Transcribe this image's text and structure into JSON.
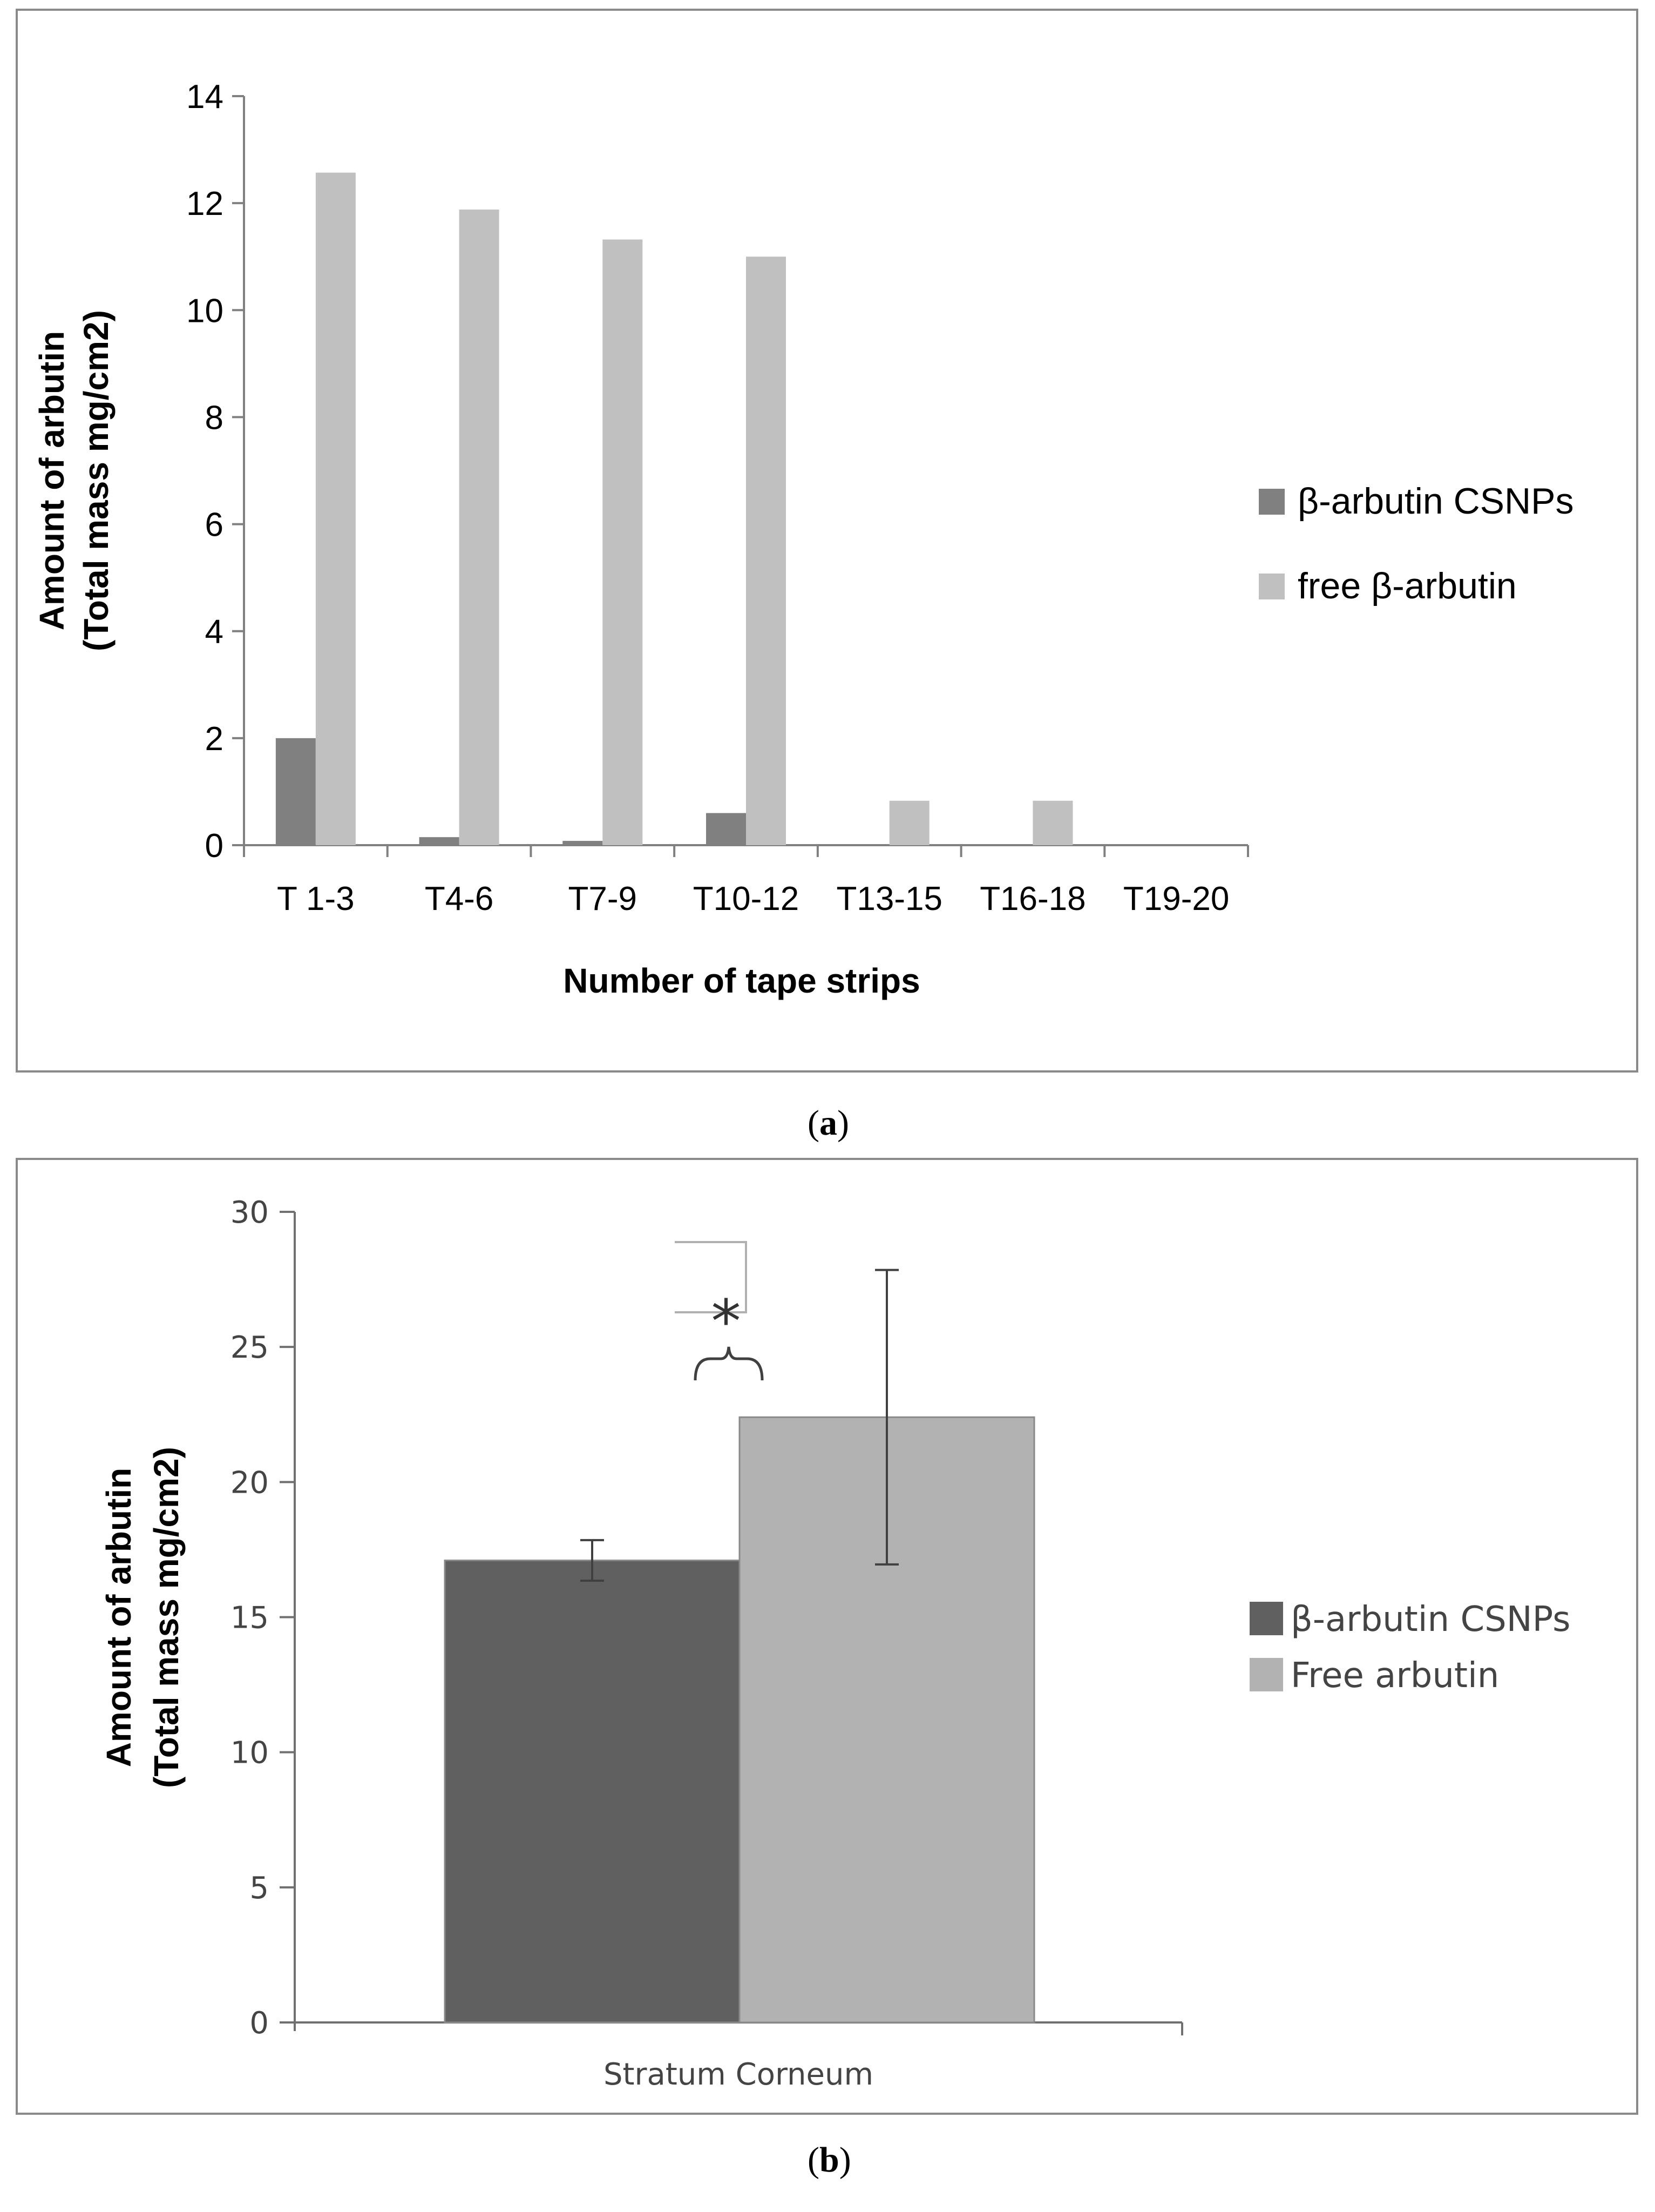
{
  "chart_data": [
    {
      "panel_label": "a",
      "type": "bar",
      "title": "",
      "xlabel": "Number of tape strips",
      "ylabel_lines": [
        "Amount of arbutin",
        "(Total mass mg/cm2)"
      ],
      "ylim": [
        0,
        14
      ],
      "yticks": [
        0,
        2,
        4,
        6,
        8,
        10,
        12,
        14
      ],
      "categories": [
        "T 1-3",
        "T4-6",
        "T7-9",
        "T10-12",
        "T13-15",
        "T16-18",
        "T19-20"
      ],
      "series": [
        {
          "name": "β-arbutin CSNPs",
          "color": "#808080",
          "values": [
            2.0,
            0.15,
            0.08,
            0.6,
            0.0,
            0.02,
            0.0
          ]
        },
        {
          "name": "free β-arbutin",
          "color": "#c0c0c0",
          "values": [
            12.57,
            11.88,
            11.32,
            11.0,
            0.83,
            0.83,
            0.0
          ]
        }
      ],
      "legend_position": "right"
    },
    {
      "panel_label": "b",
      "type": "bar",
      "title": "",
      "xlabel": "",
      "ylabel_lines": [
        "Amount of arbutin",
        "(Total mass mg/cm2)"
      ],
      "ylim": [
        0,
        30
      ],
      "yticks": [
        0,
        5,
        10,
        15,
        20,
        25,
        30
      ],
      "categories": [
        "Stratum Corneum"
      ],
      "series": [
        {
          "name": "β-arbutin CSNPs",
          "color": "#606060",
          "values": [
            17.1
          ],
          "error": [
            0.75
          ]
        },
        {
          "name": "Free arbutin",
          "color": "#b2b2b2",
          "values": [
            22.4
          ],
          "error": [
            5.45
          ]
        }
      ],
      "annotation": "*",
      "legend_position": "right"
    }
  ]
}
